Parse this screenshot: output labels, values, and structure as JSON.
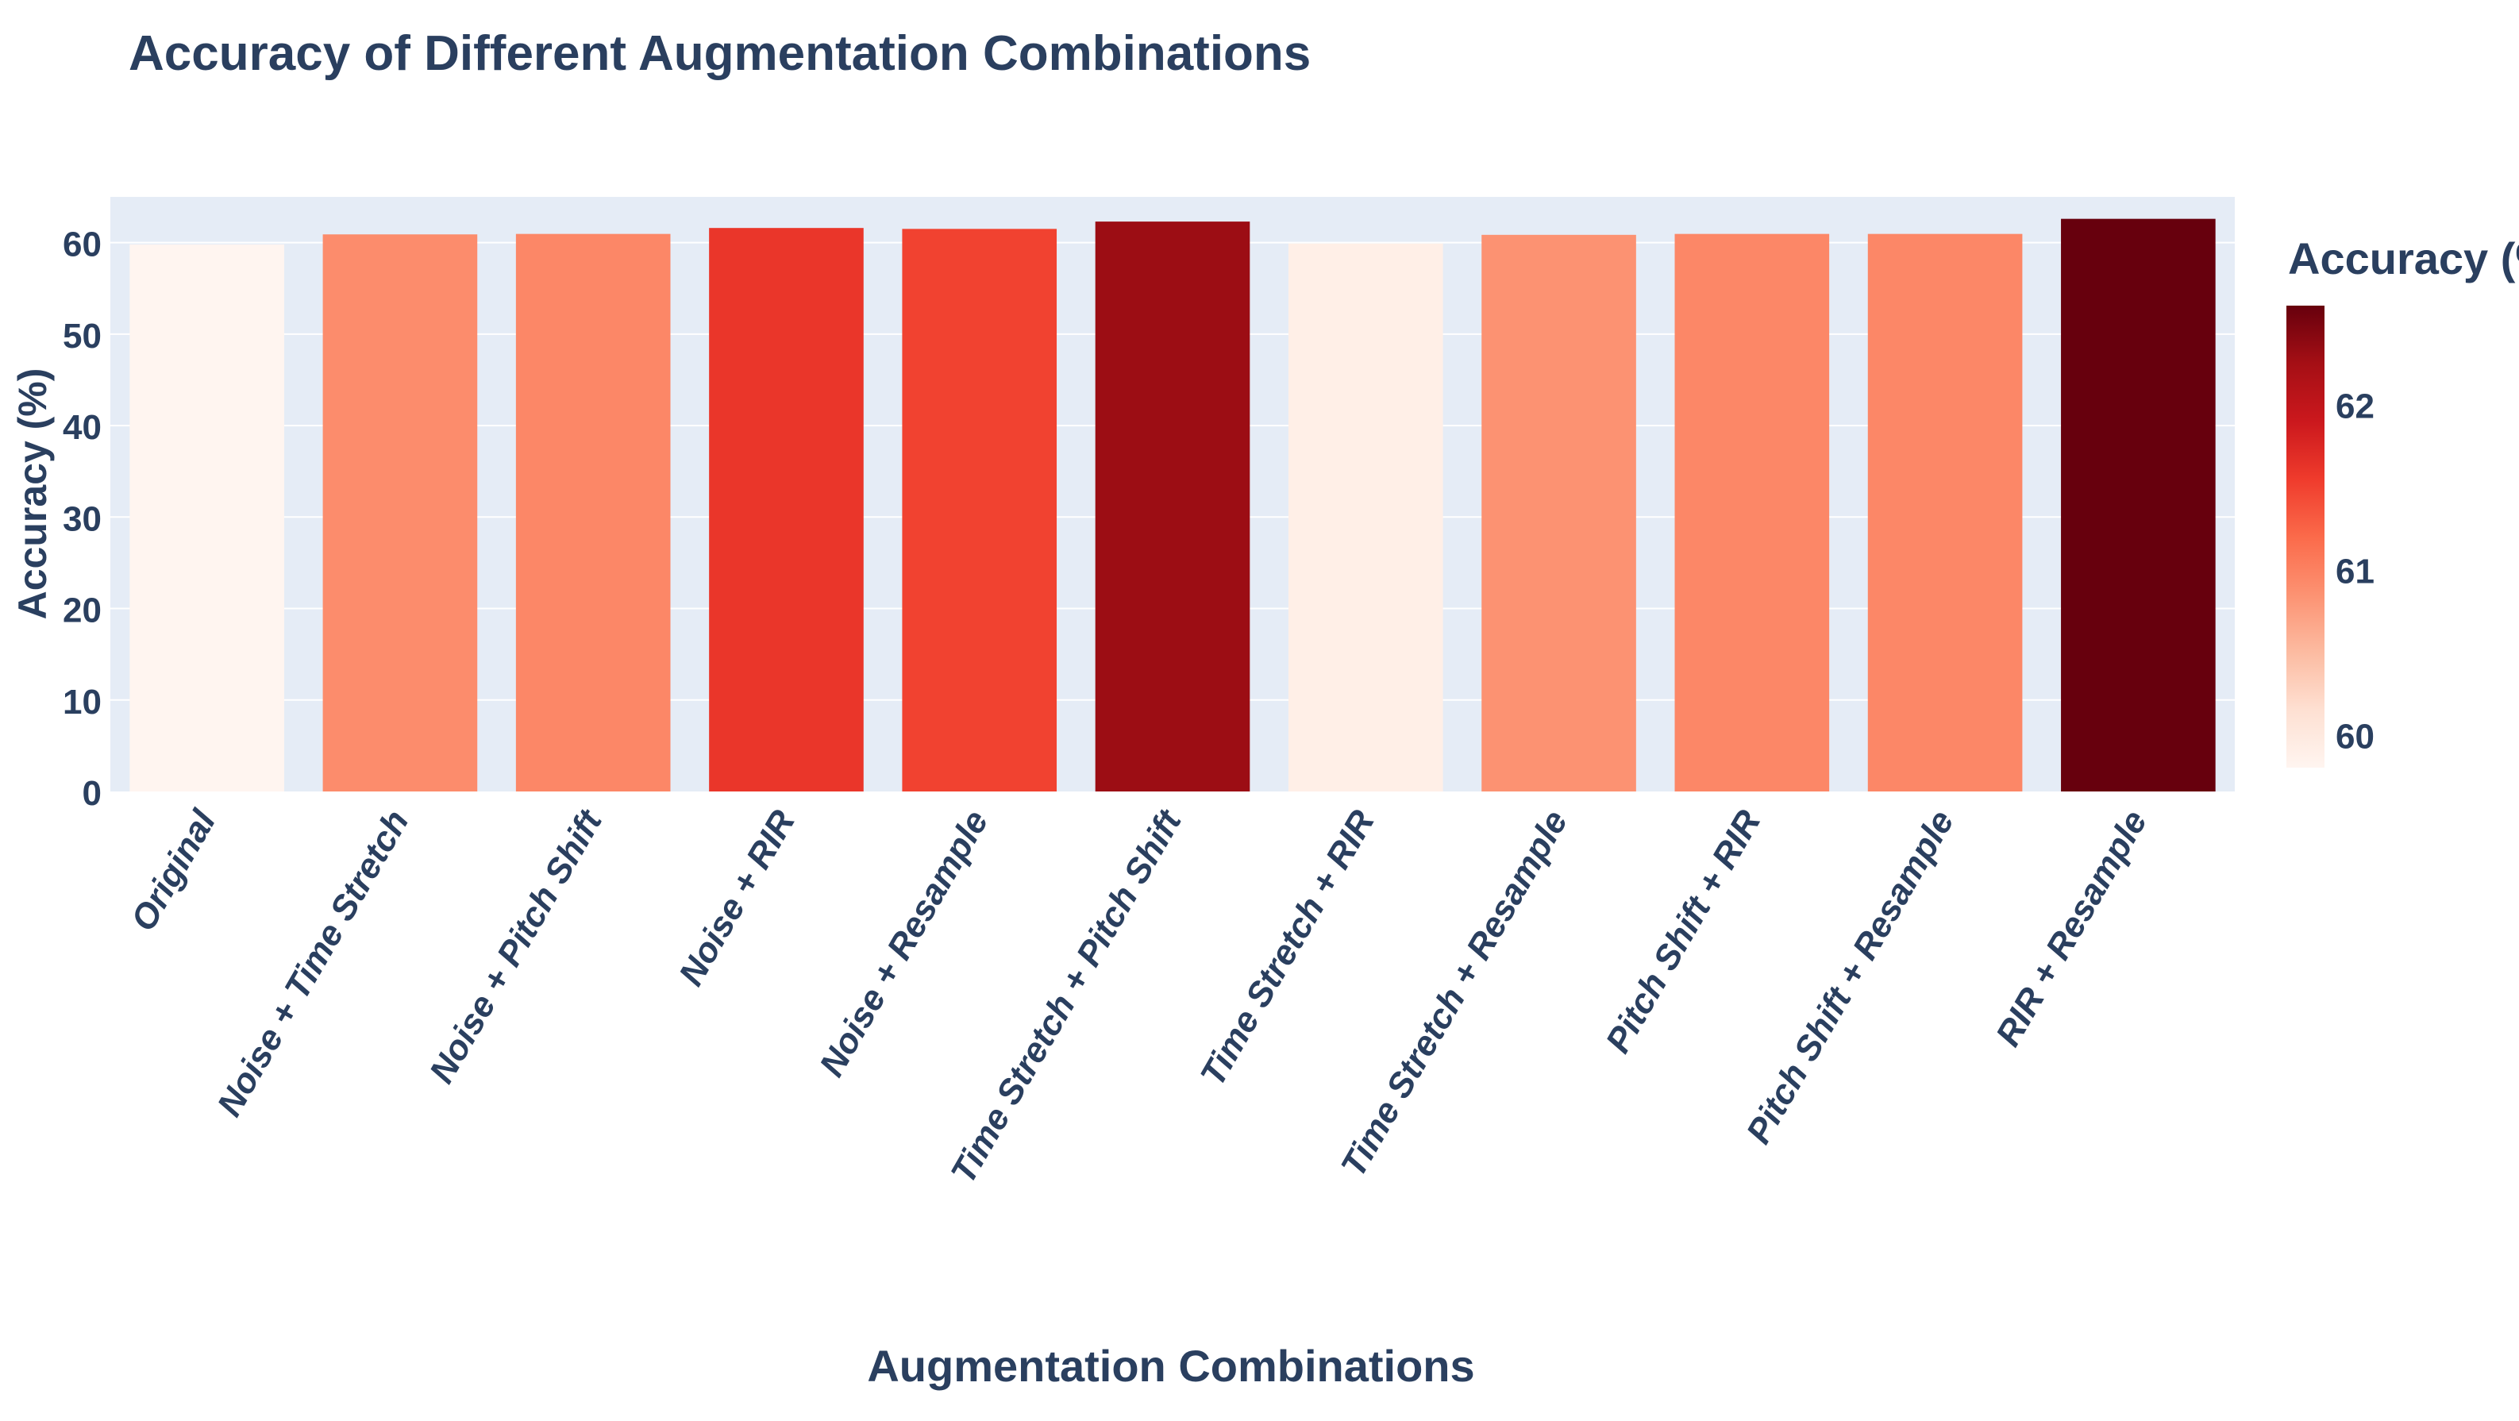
{
  "chart_data": {
    "type": "bar",
    "title": "Accuracy of Different Augmentation Combinations",
    "xlabel": "Augmentation Combinations",
    "ylabel": "Accuracy (%)",
    "categories": [
      "Original",
      "Noise + Time Stretch",
      "Noise + Pitch Shift",
      "Noise + RIR",
      "Noise + Resample",
      "Time Stretch + Pitch Shift",
      "Time Stretch + RIR",
      "Time Stretch + Resample",
      "Pitch Shift + RIR",
      "Pitch Shift + Resample",
      "RIR + Resample"
    ],
    "values": [
      59.8,
      60.9,
      60.95,
      61.6,
      61.5,
      62.3,
      59.9,
      60.85,
      60.95,
      60.95,
      62.6
    ],
    "ylim": [
      0,
      65
    ],
    "yticks": [
      0,
      10,
      20,
      30,
      40,
      50,
      60
    ],
    "grid": true,
    "colorbar": {
      "title": "Accuracy (%)",
      "range": [
        59.8,
        62.6
      ],
      "ticks": [
        60,
        61,
        62
      ],
      "colorscale": "Reds"
    }
  }
}
